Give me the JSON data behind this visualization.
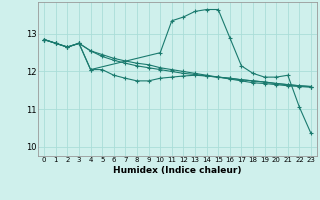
{
  "xlabel": "Humidex (Indice chaleur)",
  "background_color": "#cff0ec",
  "grid_color": "#aaddd8",
  "line_color": "#1a7a6e",
  "xlim": [
    -0.5,
    23.5
  ],
  "ylim": [
    9.75,
    13.85
  ],
  "yticks": [
    10,
    11,
    12,
    13
  ],
  "xticks": [
    0,
    1,
    2,
    3,
    4,
    5,
    6,
    7,
    8,
    9,
    10,
    11,
    12,
    13,
    14,
    15,
    16,
    17,
    18,
    19,
    20,
    21,
    22,
    23
  ],
  "series": [
    {
      "x": [
        0,
        1,
        2,
        3,
        4,
        10,
        11,
        12,
        13,
        14,
        15,
        16,
        17,
        18,
        19,
        20,
        21,
        22,
        23
      ],
      "y": [
        12.85,
        12.75,
        12.65,
        12.75,
        12.05,
        12.5,
        13.35,
        13.45,
        13.6,
        13.65,
        13.65,
        12.9,
        12.15,
        11.95,
        11.85,
        11.85,
        11.9,
        11.05,
        10.35
      ]
    },
    {
      "x": [
        0,
        1,
        2,
        3,
        4,
        5,
        6,
        7,
        8,
        9,
        10,
        11,
        12,
        13,
        14,
        15,
        16,
        17,
        18,
        19,
        20,
        21,
        22,
        23
      ],
      "y": [
        12.85,
        12.75,
        12.65,
        12.75,
        12.55,
        12.45,
        12.35,
        12.28,
        12.22,
        12.18,
        12.1,
        12.05,
        12.0,
        11.95,
        11.9,
        11.85,
        11.8,
        11.75,
        11.7,
        11.68,
        11.65,
        11.62,
        11.6,
        11.58
      ]
    },
    {
      "x": [
        0,
        1,
        2,
        3,
        4,
        5,
        6,
        7,
        8,
        9,
        10,
        11,
        12,
        13,
        14,
        15,
        16,
        17,
        18,
        19,
        20,
        21,
        22,
        23
      ],
      "y": [
        12.85,
        12.75,
        12.65,
        12.75,
        12.55,
        12.4,
        12.3,
        12.22,
        12.15,
        12.1,
        12.05,
        12.0,
        11.95,
        11.92,
        11.88,
        11.85,
        11.82,
        11.78,
        11.75,
        11.72,
        11.68,
        11.65,
        11.62,
        11.6
      ]
    },
    {
      "x": [
        0,
        1,
        2,
        3,
        4,
        5,
        6,
        7,
        8,
        9,
        10,
        11,
        12,
        13,
        14,
        15,
        16,
        17,
        18,
        19,
        20,
        21,
        22,
        23
      ],
      "y": [
        12.85,
        12.75,
        12.65,
        12.75,
        12.05,
        12.05,
        11.9,
        11.82,
        11.75,
        11.75,
        11.82,
        11.85,
        11.88,
        11.9,
        11.88,
        11.85,
        11.82,
        11.78,
        11.75,
        11.72,
        11.68,
        11.65,
        11.62,
        11.6
      ]
    }
  ]
}
